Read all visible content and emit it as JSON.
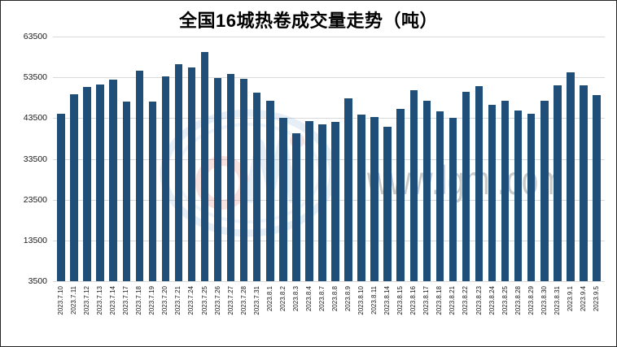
{
  "watermark": {
    "text": "www.lgmi.com",
    "logo_blue": "#8fb4dc",
    "logo_red": "#e07a7a"
  },
  "chart_data": {
    "type": "bar",
    "title": "全国16城热卷成交量走势（吨）",
    "xlabel": "",
    "ylabel": "",
    "ylim": [
      3500,
      63500
    ],
    "ytick_step": 10000,
    "yticks": [
      63500,
      53500,
      43500,
      33500,
      23500,
      13500,
      3500
    ],
    "grid": true,
    "legend": false,
    "bar_color": "#1f4e79",
    "gridline_color": "#d9d9d9",
    "categories": [
      "2023.7.10",
      "2023.7.11",
      "2023.7.12",
      "2023.7.13",
      "2023.7.14",
      "2023.7.17",
      "2023.7.18",
      "2023.7.19",
      "2023.7.20",
      "2023.7.21",
      "2023.7.24",
      "2023.7.25",
      "2023.7.26",
      "2023.7.27",
      "2023.7.28",
      "2023.7.31",
      "2023.8.1",
      "2023.8.2",
      "2023.8.3",
      "2023.8.4",
      "2023.8.7",
      "2023.8.8",
      "2023.8.9",
      "2023.8.10",
      "2023.8.11",
      "2023.8.14",
      "2023.8.15",
      "2023.8.16",
      "2023.8.17",
      "2023.8.18",
      "2023.8.21",
      "2023.8.22",
      "2023.8.23",
      "2023.8.24",
      "2023.8.25",
      "2023.8.28",
      "2023.8.29",
      "2023.8.30",
      "2023.8.31",
      "2023.9.1",
      "2023.9.4",
      "2023.9.5"
    ],
    "values": [
      44500,
      49300,
      51200,
      51800,
      53000,
      47600,
      55100,
      47600,
      53800,
      56800,
      56000,
      59700,
      53300,
      54300,
      53100,
      49800,
      47700,
      43600,
      39700,
      42800,
      41900,
      42600,
      48400,
      44400,
      43800,
      41300,
      45800,
      50400,
      47800,
      45100,
      43600,
      50000,
      51400,
      46700,
      47700,
      45400,
      44600,
      47800,
      51600,
      54700,
      51500,
      49200
    ]
  }
}
